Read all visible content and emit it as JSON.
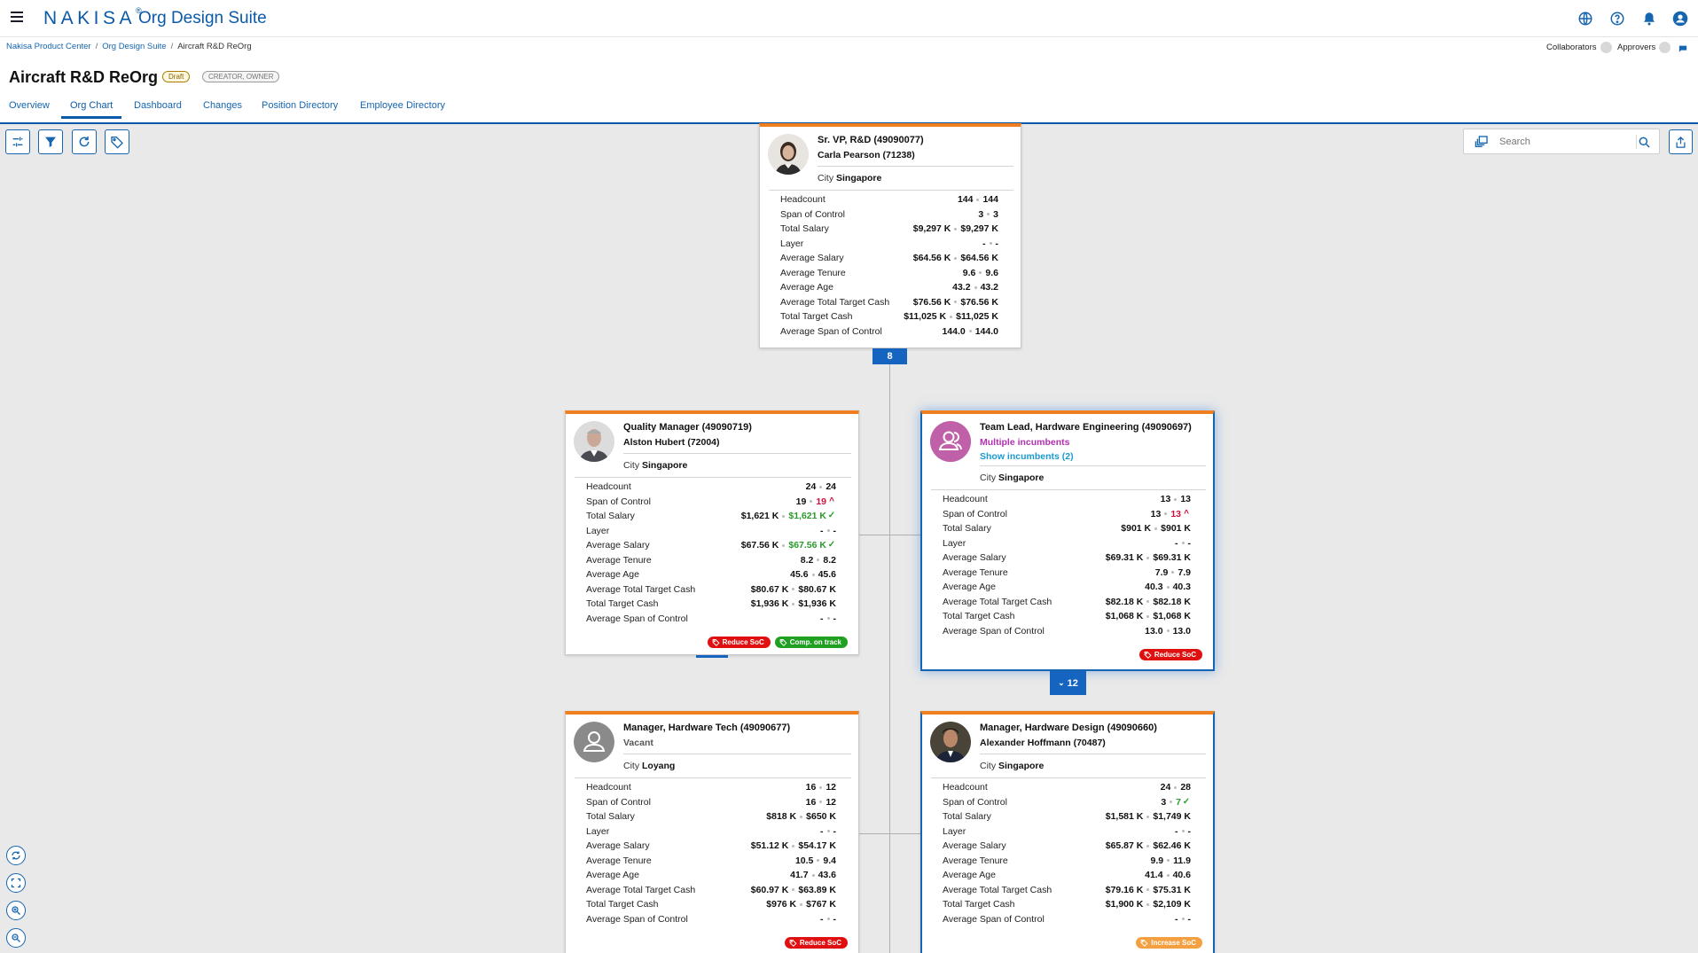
{
  "header": {
    "logo": "NAKISA",
    "logo_mark": "®",
    "app_name": "Org Design Suite"
  },
  "icons": {
    "menu": "hamburger-icon",
    "language": "globe-icon",
    "help": "help-icon",
    "notifications": "bell-icon",
    "user": "user-avatar-icon"
  },
  "breadcrumb": [
    "Nakisa Product Center",
    "Org Design Suite",
    "Aircraft R&D ReOrg"
  ],
  "collaborators": {
    "label": "Collaborators",
    "approvers_label": "Approvers"
  },
  "page": {
    "title": "Aircraft R&D ReOrg",
    "status": "Draft",
    "role": "CREATOR, OWNER"
  },
  "tabs": [
    "Overview",
    "Org Chart",
    "Dashboard",
    "Changes",
    "Position Directory",
    "Employee Directory"
  ],
  "active_tab": "Org Chart",
  "search": {
    "placeholder": "Search"
  },
  "metric_labels": [
    "Headcount",
    "Span of Control",
    "Total Salary",
    "Layer",
    "Average Salary",
    "Average Tenure",
    "Average Age",
    "Average Total Target Cash",
    "Total Target Cash",
    "Average Span of Control"
  ],
  "cards": [
    {
      "title": "Sr. VP, R&D (49090077)",
      "name": "Carla Pearson (71238)",
      "city_label": "City",
      "city": "Singapore",
      "metrics": [
        [
          "144",
          "144"
        ],
        [
          "3",
          "3"
        ],
        [
          "$9,297 K",
          "$9,297 K"
        ],
        [
          "-",
          "-"
        ],
        [
          "$64.56 K",
          "$64.56 K"
        ],
        [
          "9.6",
          "9.6"
        ],
        [
          "43.2",
          "43.2"
        ],
        [
          "$76.56 K",
          "$76.56 K"
        ],
        [
          "$11,025 K",
          "$11,025 K"
        ],
        [
          "144.0",
          "144.0"
        ]
      ],
      "badges": [],
      "count": "8"
    },
    {
      "title": "Quality Manager (49090719)",
      "name": "Alston Hubert (72004)",
      "city_label": "City",
      "city": "Singapore",
      "metrics": [
        [
          "24",
          "24"
        ],
        [
          "19",
          "19"
        ],
        [
          "$1,621 K",
          "$1,621 K"
        ],
        [
          "-",
          "-"
        ],
        [
          "$67.56 K",
          "$67.56 K"
        ],
        [
          "8.2",
          "8.2"
        ],
        [
          "45.6",
          "45.6"
        ],
        [
          "$80.67 K",
          "$80.67 K"
        ],
        [
          "$1,936 K",
          "$1,936 K"
        ],
        [
          "-",
          "-"
        ]
      ],
      "badges": [
        "Reduce SoC",
        "Comp. on track"
      ]
    },
    {
      "title": "Team Lead, Hardware Engineering (49090697)",
      "name": "Multiple incumbents",
      "show": "Show incumbents (2)",
      "city_label": "City",
      "city": "Singapore",
      "metrics": [
        [
          "13",
          "13"
        ],
        [
          "13",
          "13"
        ],
        [
          "$901 K",
          "$901 K"
        ],
        [
          "-",
          "-"
        ],
        [
          "$69.31 K",
          "$69.31 K"
        ],
        [
          "7.9",
          "7.9"
        ],
        [
          "40.3",
          "40.3"
        ],
        [
          "$82.18 K",
          "$82.18 K"
        ],
        [
          "$1,068 K",
          "$1,068 K"
        ],
        [
          "13.0",
          "13.0"
        ]
      ],
      "badges": [
        "Reduce SoC"
      ],
      "count": "12"
    },
    {
      "title": "Manager, Hardware Tech (49090677)",
      "name": "Vacant",
      "city_label": "City",
      "city": "Loyang",
      "metrics": [
        [
          "16",
          "12"
        ],
        [
          "16",
          "12"
        ],
        [
          "$818 K",
          "$650 K"
        ],
        [
          "-",
          "-"
        ],
        [
          "$51.12 K",
          "$54.17 K"
        ],
        [
          "10.5",
          "9.4"
        ],
        [
          "41.7",
          "43.6"
        ],
        [
          "$60.97 K",
          "$63.89 K"
        ],
        [
          "$976 K",
          "$767 K"
        ],
        [
          "-",
          "-"
        ]
      ],
      "badges": [
        "Reduce SoC"
      ]
    },
    {
      "title": "Manager, Hardware Design (49090660)",
      "name": "Alexander Hoffmann (70487)",
      "city_label": "City",
      "city": "Singapore",
      "metrics": [
        [
          "24",
          "28"
        ],
        [
          "3",
          "7"
        ],
        [
          "$1,581 K",
          "$1,749 K"
        ],
        [
          "-",
          "-"
        ],
        [
          "$65.87 K",
          "$62.46 K"
        ],
        [
          "9.9",
          "11.9"
        ],
        [
          "41.4",
          "40.6"
        ],
        [
          "$79.16 K",
          "$75.31 K"
        ],
        [
          "$1,900 K",
          "$2,109 K"
        ],
        [
          "-",
          "-"
        ]
      ],
      "badges": [
        "Increase SoC"
      ]
    }
  ],
  "colors": {
    "brand": "#0b5aa8",
    "accent": "#f07f20",
    "red": "#e01010",
    "green": "#20a020",
    "orange": "#f5a040"
  }
}
